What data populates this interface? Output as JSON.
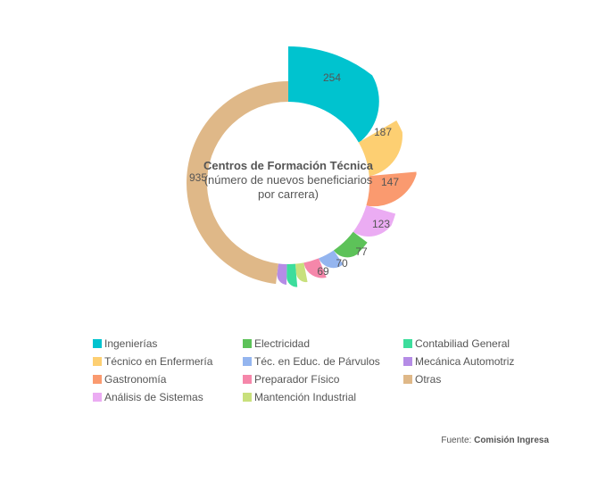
{
  "chart_data": {
    "type": "pie",
    "title": "Centros de Formación Técnica",
    "subtitle": "(número de nuevos beneficiarios por carrera)",
    "series": [
      {
        "name": "Ingenierías",
        "value": 254,
        "color": "#00c3cf",
        "label": "254"
      },
      {
        "name": "Técnico en Enfermería",
        "value": 187,
        "color": "#fdcf72",
        "label": "187"
      },
      {
        "name": "Gastronomía",
        "value": 147,
        "color": "#fa9a6f",
        "label": "147"
      },
      {
        "name": "Análisis de Sistemas",
        "value": 123,
        "color": "#ebacf3",
        "label": "123"
      },
      {
        "name": "Electricidad",
        "value": 77,
        "color": "#5dc259",
        "label": "77"
      },
      {
        "name": "Téc. en Educ. de Párvulos",
        "value": 70,
        "color": "#94b5ef",
        "label": "70"
      },
      {
        "name": "Preparador Físico",
        "value": 69,
        "color": "#f587aa",
        "label": "69"
      },
      {
        "name": "Mantención Industrial",
        "value": null,
        "color": "#c8e07c",
        "label": ""
      },
      {
        "name": "Contabiliad General",
        "value": null,
        "color": "#3cdd9c",
        "label": ""
      },
      {
        "name": "Mecánica Automotriz",
        "value": null,
        "color": "#b58ce6",
        "label": ""
      },
      {
        "name": "Otras",
        "value": 935,
        "color": "#dfb888",
        "label": "935"
      }
    ],
    "legend_placement": "bottom"
  },
  "legend": [
    {
      "label": "Ingenierías",
      "color": "#00c3cf"
    },
    {
      "label": "Técnico en Enfermería",
      "color": "#fdcf72"
    },
    {
      "label": "Gastronomía",
      "color": "#fa9a6f"
    },
    {
      "label": "Análisis de Sistemas",
      "color": "#ebacf3"
    },
    {
      "label": "Electricidad",
      "color": "#5dc259"
    },
    {
      "label": "Téc. en Educ. de Párvulos",
      "color": "#94b5ef"
    },
    {
      "label": "Preparador Físico",
      "color": "#f587aa"
    },
    {
      "label": "Mantención Industrial",
      "color": "#c8e07c"
    },
    {
      "label": "Contabiliad General",
      "color": "#3cdd9c"
    },
    {
      "label": "Mecánica Automotriz",
      "color": "#b58ce6"
    },
    {
      "label": "Otras",
      "color": "#dfb888"
    }
  ],
  "source": {
    "prefix": "Fuente: ",
    "name": "Comisión Ingresa"
  }
}
